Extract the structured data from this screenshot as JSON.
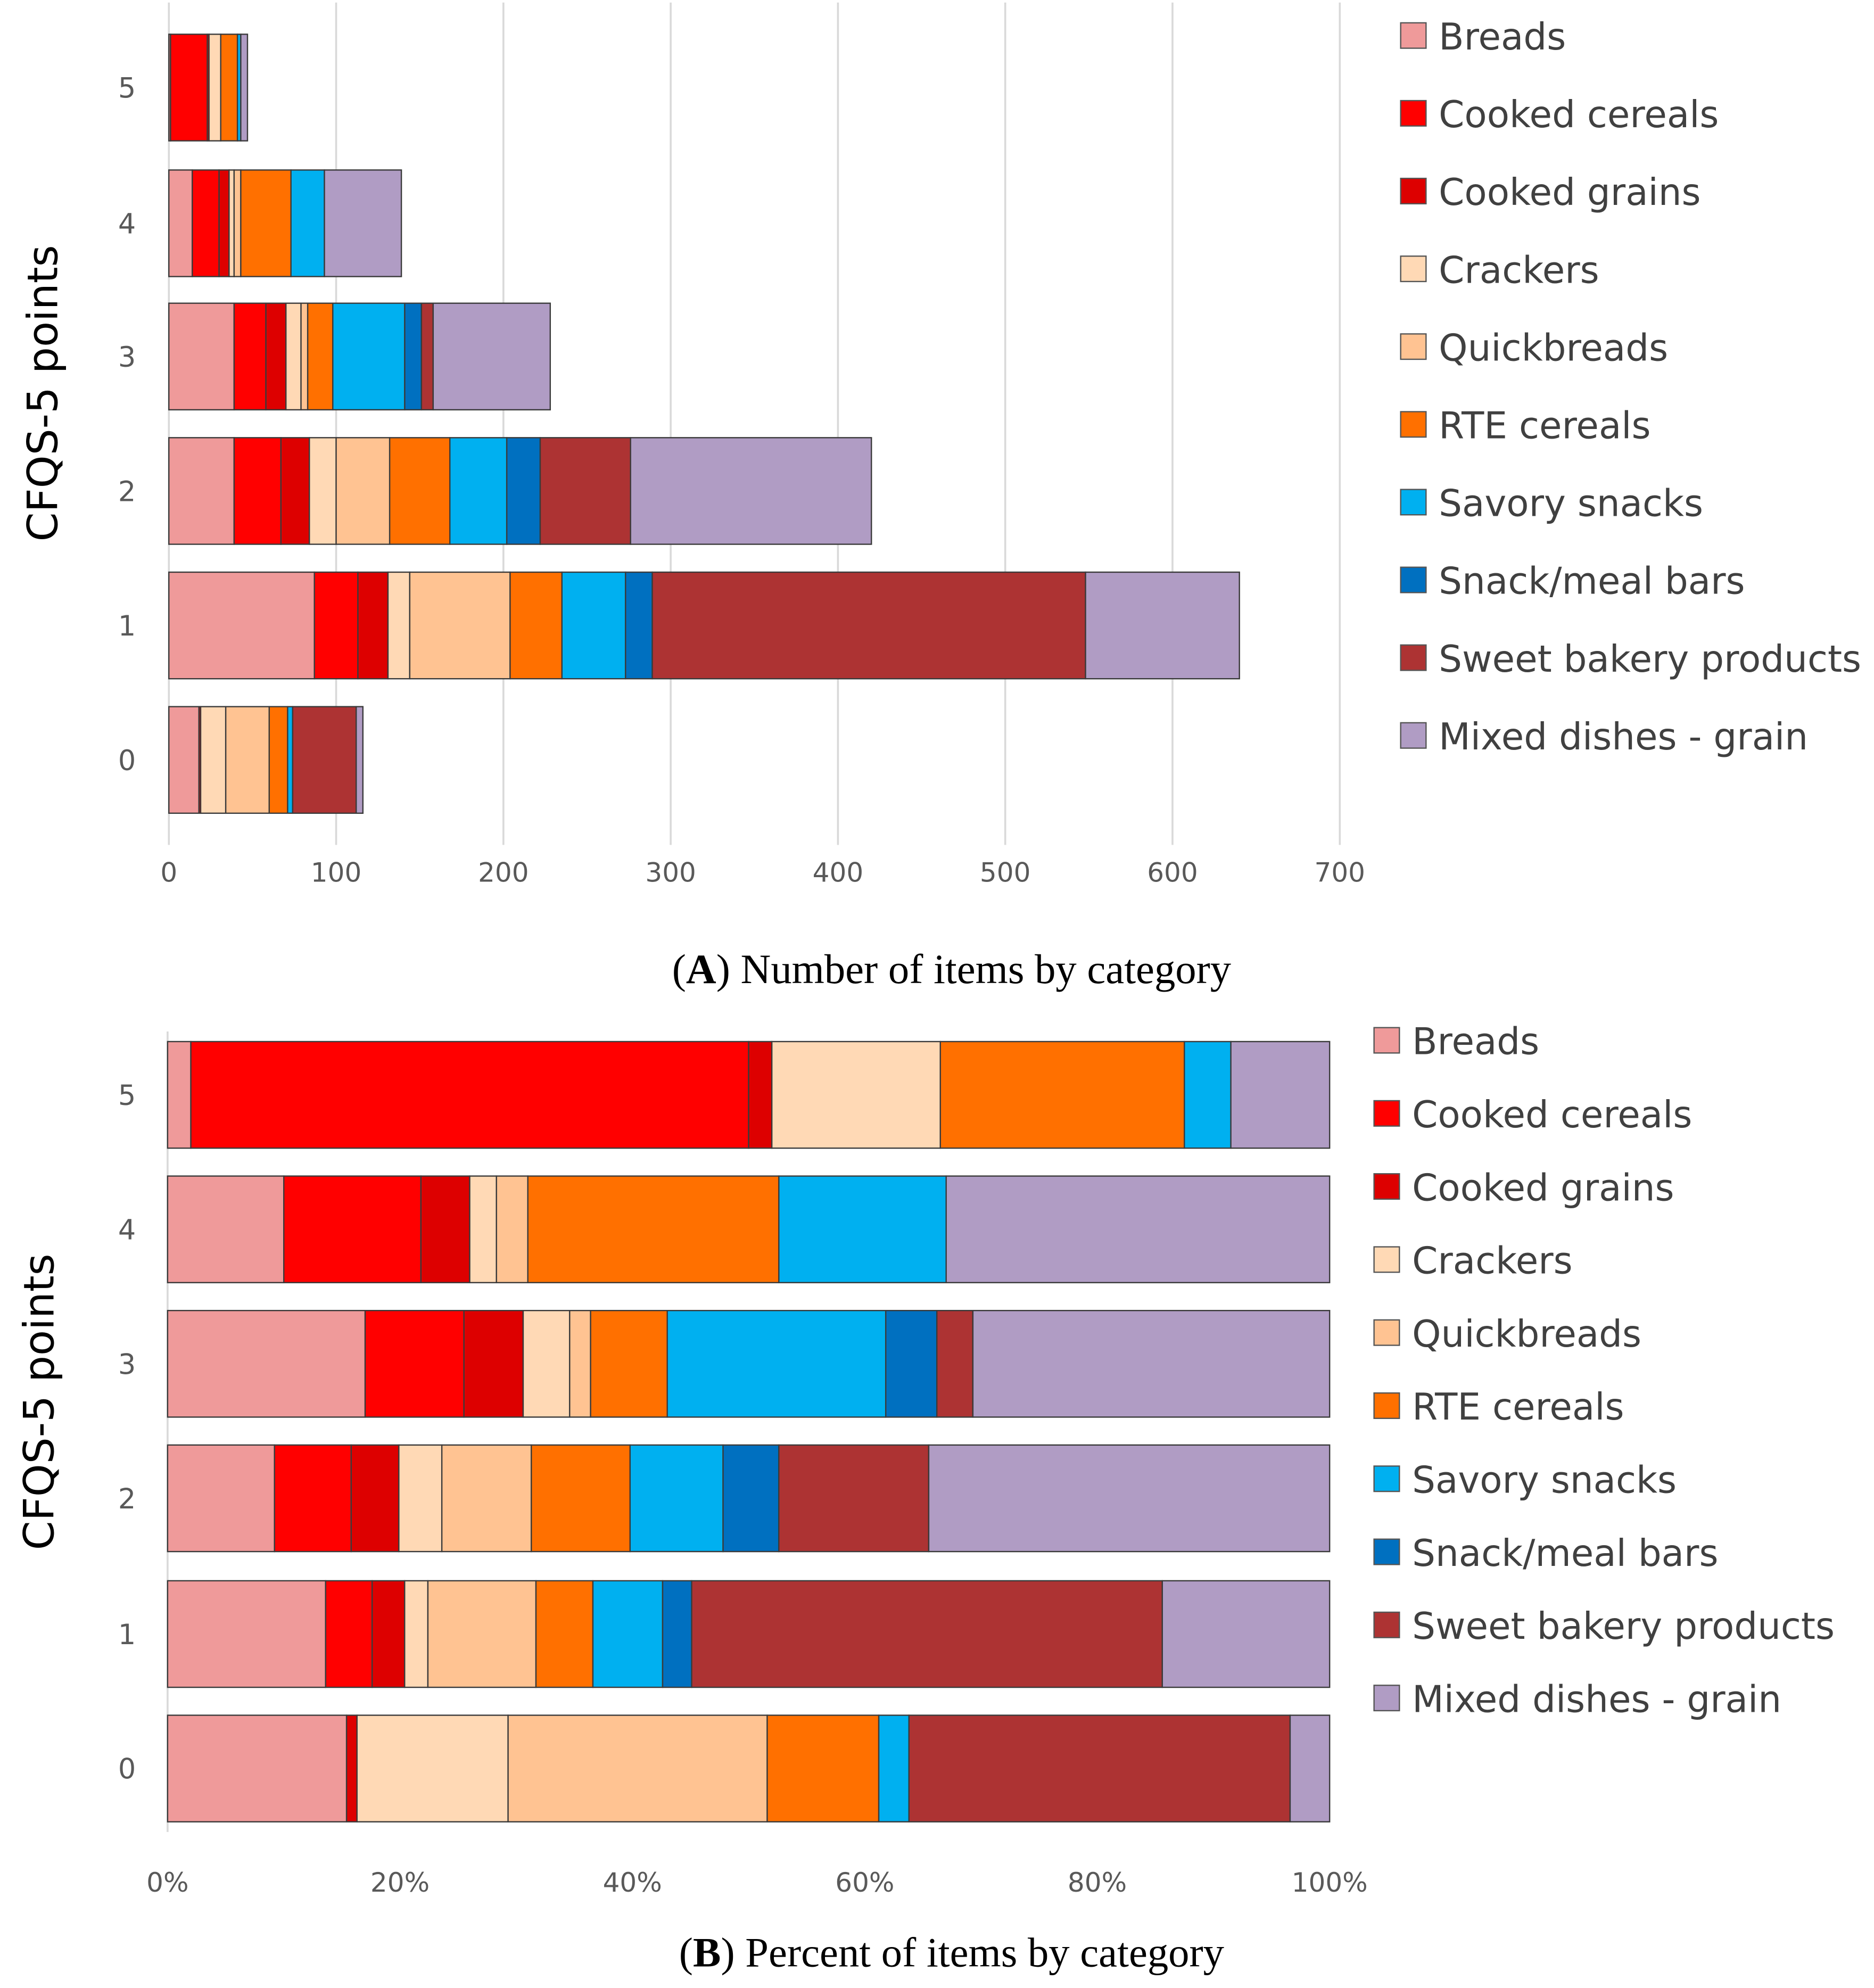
{
  "colors": {
    "Breads": "#EF9A9A",
    "Cooked cereals": "#FF0000",
    "Cooked grains": "#DD0000",
    "Crackers": "#FFD9B5",
    "Quickbreads": "#FFC392",
    "RTE cereals": "#FF7000",
    "Savory snacks": "#00B0F0",
    "Snack/meal bars": "#0070C0",
    "Sweet bakery products": "#AD3333",
    "Mixed dishes - grain": "#B09CC4"
  },
  "chart_data": [
    {
      "type": "bar",
      "orientation": "horizontal",
      "stacked": true,
      "caption_letter": "A",
      "caption_text": "Number of items by category",
      "ylabel": "CFQS-5 points",
      "xlabel": "",
      "categories": [
        "0",
        "1",
        "2",
        "3",
        "4",
        "5"
      ],
      "xlim": [
        0,
        700
      ],
      "xticks": [
        "0",
        "100",
        "200",
        "300",
        "400",
        "500",
        "600",
        "700"
      ],
      "grid": true,
      "legend_position": "right",
      "series": [
        {
          "name": "Breads",
          "values": [
            18,
            87,
            39,
            39,
            14,
            1
          ]
        },
        {
          "name": "Cooked cereals",
          "values": [
            0,
            26,
            28,
            19,
            16,
            22
          ]
        },
        {
          "name": "Cooked grains",
          "values": [
            1,
            18,
            17,
            12,
            6,
            1
          ]
        },
        {
          "name": "Crackers",
          "values": [
            15,
            13,
            16,
            9,
            3,
            7
          ]
        },
        {
          "name": "Quickbreads",
          "values": [
            26,
            60,
            32,
            4,
            4,
            0
          ]
        },
        {
          "name": "RTE cereals",
          "values": [
            11,
            31,
            36,
            15,
            30,
            10
          ]
        },
        {
          "name": "Savory snacks",
          "values": [
            3,
            38,
            34,
            43,
            20,
            2
          ]
        },
        {
          "name": "Snack/meal bars",
          "values": [
            0,
            16,
            20,
            10,
            0,
            0
          ]
        },
        {
          "name": "Sweet bakery products",
          "values": [
            38,
            259,
            54,
            7,
            0,
            0
          ]
        },
        {
          "name": "Mixed dishes - grain",
          "values": [
            4,
            92,
            144,
            70,
            46,
            4
          ]
        }
      ]
    },
    {
      "type": "bar",
      "orientation": "horizontal",
      "stacked": true,
      "caption_letter": "B",
      "caption_text": "Percent of items by category",
      "ylabel": "CFQS-5 points",
      "xlabel": "",
      "categories": [
        "0",
        "1",
        "2",
        "3",
        "4",
        "5"
      ],
      "xlim": [
        0,
        100
      ],
      "xticks": [
        "0%",
        "20%",
        "40%",
        "60%",
        "80%",
        "100%"
      ],
      "grid": false,
      "legend_position": "right",
      "series": [
        {
          "name": "Breads",
          "values": [
            15.4,
            13.6,
            9.2,
            17.0,
            10.0,
            2.0
          ]
        },
        {
          "name": "Cooked cereals",
          "values": [
            0,
            4.0,
            6.6,
            8.5,
            11.8,
            48.0
          ]
        },
        {
          "name": "Cooked grains",
          "values": [
            0.9,
            2.8,
            4.1,
            5.1,
            4.2,
            2.0
          ]
        },
        {
          "name": "Crackers",
          "values": [
            13.0,
            2.0,
            3.7,
            4.0,
            2.3,
            14.5
          ]
        },
        {
          "name": "Quickbreads",
          "values": [
            22.3,
            9.3,
            7.7,
            1.8,
            2.7,
            0
          ]
        },
        {
          "name": "RTE cereals",
          "values": [
            9.6,
            4.9,
            8.5,
            6.6,
            21.6,
            21.0
          ]
        },
        {
          "name": "Savory snacks",
          "values": [
            2.6,
            6.0,
            8.0,
            18.8,
            14.4,
            4.0
          ]
        },
        {
          "name": "Snack/meal bars",
          "values": [
            0,
            2.5,
            4.8,
            4.4,
            0,
            0
          ]
        },
        {
          "name": "Sweet bakery products",
          "values": [
            32.8,
            40.5,
            12.9,
            3.1,
            0,
            0
          ]
        },
        {
          "name": "Mixed dishes - grain",
          "values": [
            3.4,
            14.4,
            34.5,
            30.7,
            33.0,
            8.5
          ]
        }
      ]
    }
  ]
}
